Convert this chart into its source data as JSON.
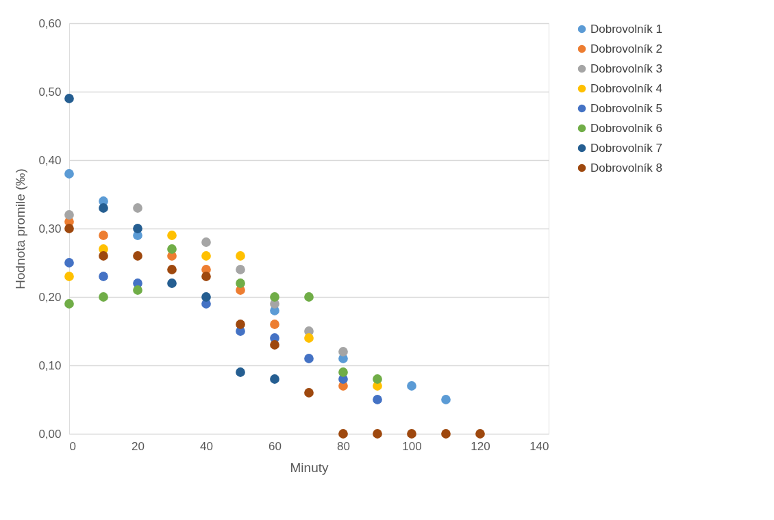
{
  "chart_data": {
    "type": "scatter",
    "xlabel": "Minuty",
    "ylabel": "Hodnota promile (‰)",
    "x": [
      0,
      10,
      20,
      30,
      40,
      50,
      60,
      70,
      80,
      90,
      100,
      110,
      120
    ],
    "xlim": [
      0,
      140
    ],
    "xticks": [
      0,
      20,
      40,
      60,
      80,
      100,
      120,
      140
    ],
    "ylim": [
      0,
      0.6
    ],
    "yticks": [
      {
        "value": 0,
        "label": "0,00"
      },
      {
        "value": 0.1,
        "label": "0,10"
      },
      {
        "value": 0.2,
        "label": "0,20"
      },
      {
        "value": 0.3,
        "label": "0,30"
      },
      {
        "value": 0.4,
        "label": "0,40"
      },
      {
        "value": 0.5,
        "label": "0,50"
      },
      {
        "value": 0.6,
        "label": "0,60"
      }
    ],
    "grid": "y",
    "legend": "right",
    "marker": "circle",
    "series": [
      {
        "name": "Dobrovolník 1",
        "color": "#5b9bd5",
        "values": [
          0.38,
          0.34,
          0.29,
          null,
          null,
          null,
          0.18,
          null,
          0.11,
          null,
          0.07,
          0.05,
          null
        ]
      },
      {
        "name": "Dobrovolník 2",
        "color": "#ed7d31",
        "values": [
          0.31,
          0.29,
          null,
          0.26,
          0.24,
          0.21,
          0.16,
          null,
          0.07,
          null,
          null,
          null,
          null
        ]
      },
      {
        "name": "Dobrovolník 3",
        "color": "#a5a5a5",
        "values": [
          0.32,
          null,
          0.33,
          null,
          0.28,
          0.24,
          0.19,
          0.15,
          0.12,
          null,
          null,
          null,
          null
        ]
      },
      {
        "name": "Dobrovolník 4",
        "color": "#ffc000",
        "values": [
          0.23,
          0.27,
          null,
          0.29,
          0.26,
          0.26,
          null,
          0.14,
          null,
          0.07,
          null,
          null,
          null
        ]
      },
      {
        "name": "Dobrovolník 5",
        "color": "#4472c4",
        "values": [
          0.25,
          0.23,
          0.22,
          null,
          0.19,
          0.15,
          0.14,
          0.11,
          0.08,
          0.05,
          null,
          null,
          null
        ]
      },
      {
        "name": "Dobrovolník 6",
        "color": "#70ad47",
        "values": [
          0.19,
          0.2,
          0.21,
          0.27,
          null,
          0.22,
          0.2,
          0.2,
          0.09,
          0.08,
          null,
          null,
          null
        ]
      },
      {
        "name": "Dobrovolník 7",
        "color": "#255e91",
        "values": [
          0.49,
          0.33,
          0.3,
          0.22,
          0.2,
          0.09,
          0.08,
          null,
          null,
          null,
          null,
          null,
          null
        ]
      },
      {
        "name": "Dobrovolník 8",
        "color": "#9e480e",
        "values": [
          0.3,
          0.26,
          0.26,
          0.24,
          0.23,
          0.16,
          0.13,
          0.06,
          0,
          0,
          0,
          0,
          0
        ]
      }
    ]
  }
}
